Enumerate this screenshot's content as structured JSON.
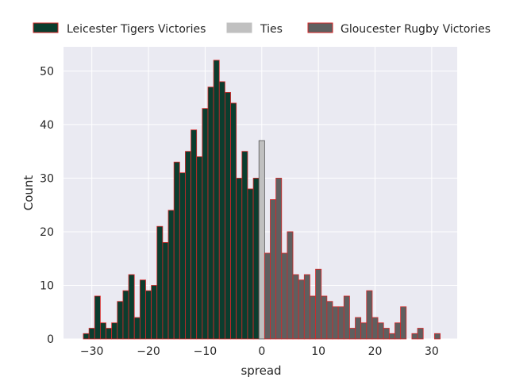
{
  "chart_data": {
    "type": "bar",
    "xlabel": "spread",
    "ylabel": "Count",
    "xlim": [
      -35,
      34.5
    ],
    "ylim": [
      0,
      54.5
    ],
    "xticks": [
      -30,
      -20,
      -10,
      0,
      10,
      20,
      30
    ],
    "xtick_labels": [
      "−30",
      "−20",
      "−10",
      "0",
      "10",
      "20",
      "30"
    ],
    "yticks": [
      0,
      10,
      20,
      30,
      40,
      50
    ],
    "ytick_labels": [
      "0",
      "10",
      "20",
      "30",
      "40",
      "50"
    ],
    "grid": true,
    "legend_position": "top",
    "bin_width": 1,
    "colors": {
      "background": "#eaeaf2",
      "grid": "#ffffff",
      "bar_edge": "#d62728",
      "leicester": "#0b3d2e",
      "ties": "#c0c0c0",
      "ties_edge": "#555555",
      "gloucester": "#5f5f5f",
      "text": "#262626"
    },
    "series": [
      {
        "name": "Leicester Tigers Victories",
        "color_key": "leicester",
        "x": [
          -31,
          -30,
          -29,
          -28,
          -27,
          -26,
          -25,
          -24,
          -23,
          -22,
          -21,
          -20,
          -19,
          -18,
          -17,
          -16,
          -15,
          -14,
          -13,
          -12,
          -11,
          -10,
          -9,
          -8,
          -7,
          -6,
          -5,
          -4,
          -3,
          -2,
          -1
        ],
        "values": [
          1,
          2,
          8,
          3,
          2,
          3,
          7,
          9,
          12,
          4,
          11,
          9,
          10,
          21,
          18,
          24,
          33,
          31,
          35,
          39,
          34,
          43,
          47,
          52,
          48,
          46,
          44,
          30,
          35,
          28,
          30
        ]
      },
      {
        "name": "Ties",
        "color_key": "ties",
        "x": [
          0
        ],
        "values": [
          37
        ]
      },
      {
        "name": "Gloucester Rugby Victories",
        "color_key": "gloucester",
        "x": [
          1,
          2,
          3,
          4,
          5,
          6,
          7,
          8,
          9,
          10,
          11,
          12,
          13,
          14,
          15,
          16,
          17,
          18,
          19,
          20,
          21,
          22,
          23,
          24,
          25,
          26,
          27,
          28,
          29,
          30,
          31
        ],
        "values": [
          16,
          26,
          30,
          16,
          20,
          12,
          11,
          12,
          8,
          13,
          8,
          7,
          6,
          6,
          8,
          2,
          4,
          3,
          9,
          4,
          3,
          2,
          1,
          3,
          6,
          0,
          1,
          2,
          0,
          0,
          1
        ]
      }
    ]
  }
}
